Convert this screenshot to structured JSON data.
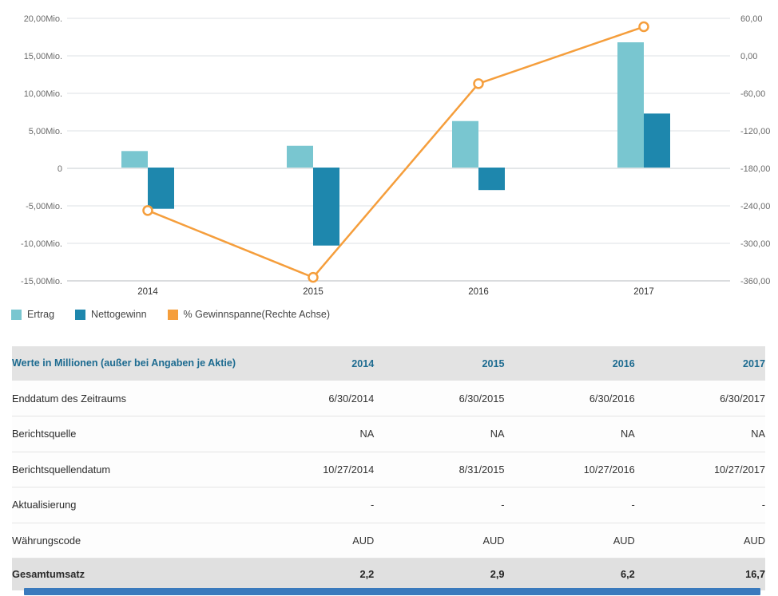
{
  "chart_data": {
    "type": "combo",
    "title": "",
    "categories": [
      "2014",
      "2015",
      "2016",
      "2017"
    ],
    "series": [
      {
        "name": "Ertrag",
        "type": "bar",
        "axis": "left",
        "color": "#79c6d0",
        "values": [
          2.2,
          2.9,
          6.2,
          16.7
        ]
      },
      {
        "name": "Nettogewinn",
        "type": "bar",
        "axis": "left",
        "color": "#1e87ad",
        "values": [
          -5.5,
          -10.4,
          -3.0,
          7.2
        ]
      },
      {
        "name": "% Gewinnspanne(Rechte Achse)",
        "type": "line",
        "axis": "right",
        "color": "#f59e3c",
        "values": [
          -250,
          -357,
          -47,
          44
        ]
      }
    ],
    "left_axis": {
      "ticks": [
        "20,00Mio.",
        "15,00Mio.",
        "10,00Mio.",
        "5,00Mio.",
        "0",
        "-5,00Mio.",
        "-10,00Mio.",
        "-15,00Mio."
      ],
      "max": 20,
      "min": -15,
      "step": 5,
      "unit": "Mio."
    },
    "right_axis": {
      "ticks": [
        "60,00",
        "0,00",
        "-60,00",
        "-120,00",
        "-180,00",
        "-240,00",
        "-300,00",
        "-360,00"
      ],
      "max": 60,
      "min": -360,
      "step": 60
    },
    "grid": true,
    "legend_position": "bottom-left"
  },
  "table": {
    "header": {
      "label": "Werte in Millionen (außer bei Angaben je Aktie)",
      "columns": [
        "2014",
        "2015",
        "2016",
        "2017"
      ]
    },
    "rows": [
      {
        "label": "Enddatum des Zeitraums",
        "values": [
          "6/30/2014",
          "6/30/2015",
          "6/30/2016",
          "6/30/2017"
        ]
      },
      {
        "label": "Berichtsquelle",
        "values": [
          "NA",
          "NA",
          "NA",
          "NA"
        ]
      },
      {
        "label": "Berichtsquellendatum",
        "values": [
          "10/27/2014",
          "8/31/2015",
          "10/27/2016",
          "10/27/2017"
        ]
      },
      {
        "label": "Aktualisierung",
        "values": [
          "-",
          "-",
          "-",
          "-"
        ]
      },
      {
        "label": "Währungscode",
        "values": [
          "AUD",
          "AUD",
          "AUD",
          "AUD"
        ]
      },
      {
        "label": "Gesamtumsatz",
        "values": [
          "2,2",
          "2,9",
          "6,2",
          "16,7"
        ],
        "emphasis": true
      }
    ]
  },
  "colors": {
    "grid_line": "#dde1e4",
    "zero_line": "#c7ccd0",
    "axis_line": "#b4b8bc",
    "header_text": "#1d6b90",
    "header_bg": "#e3e3e3",
    "total_bg": "#e0e0e0",
    "scrollbar": "#3a7abd",
    "marker_fill": "#ffffff"
  }
}
